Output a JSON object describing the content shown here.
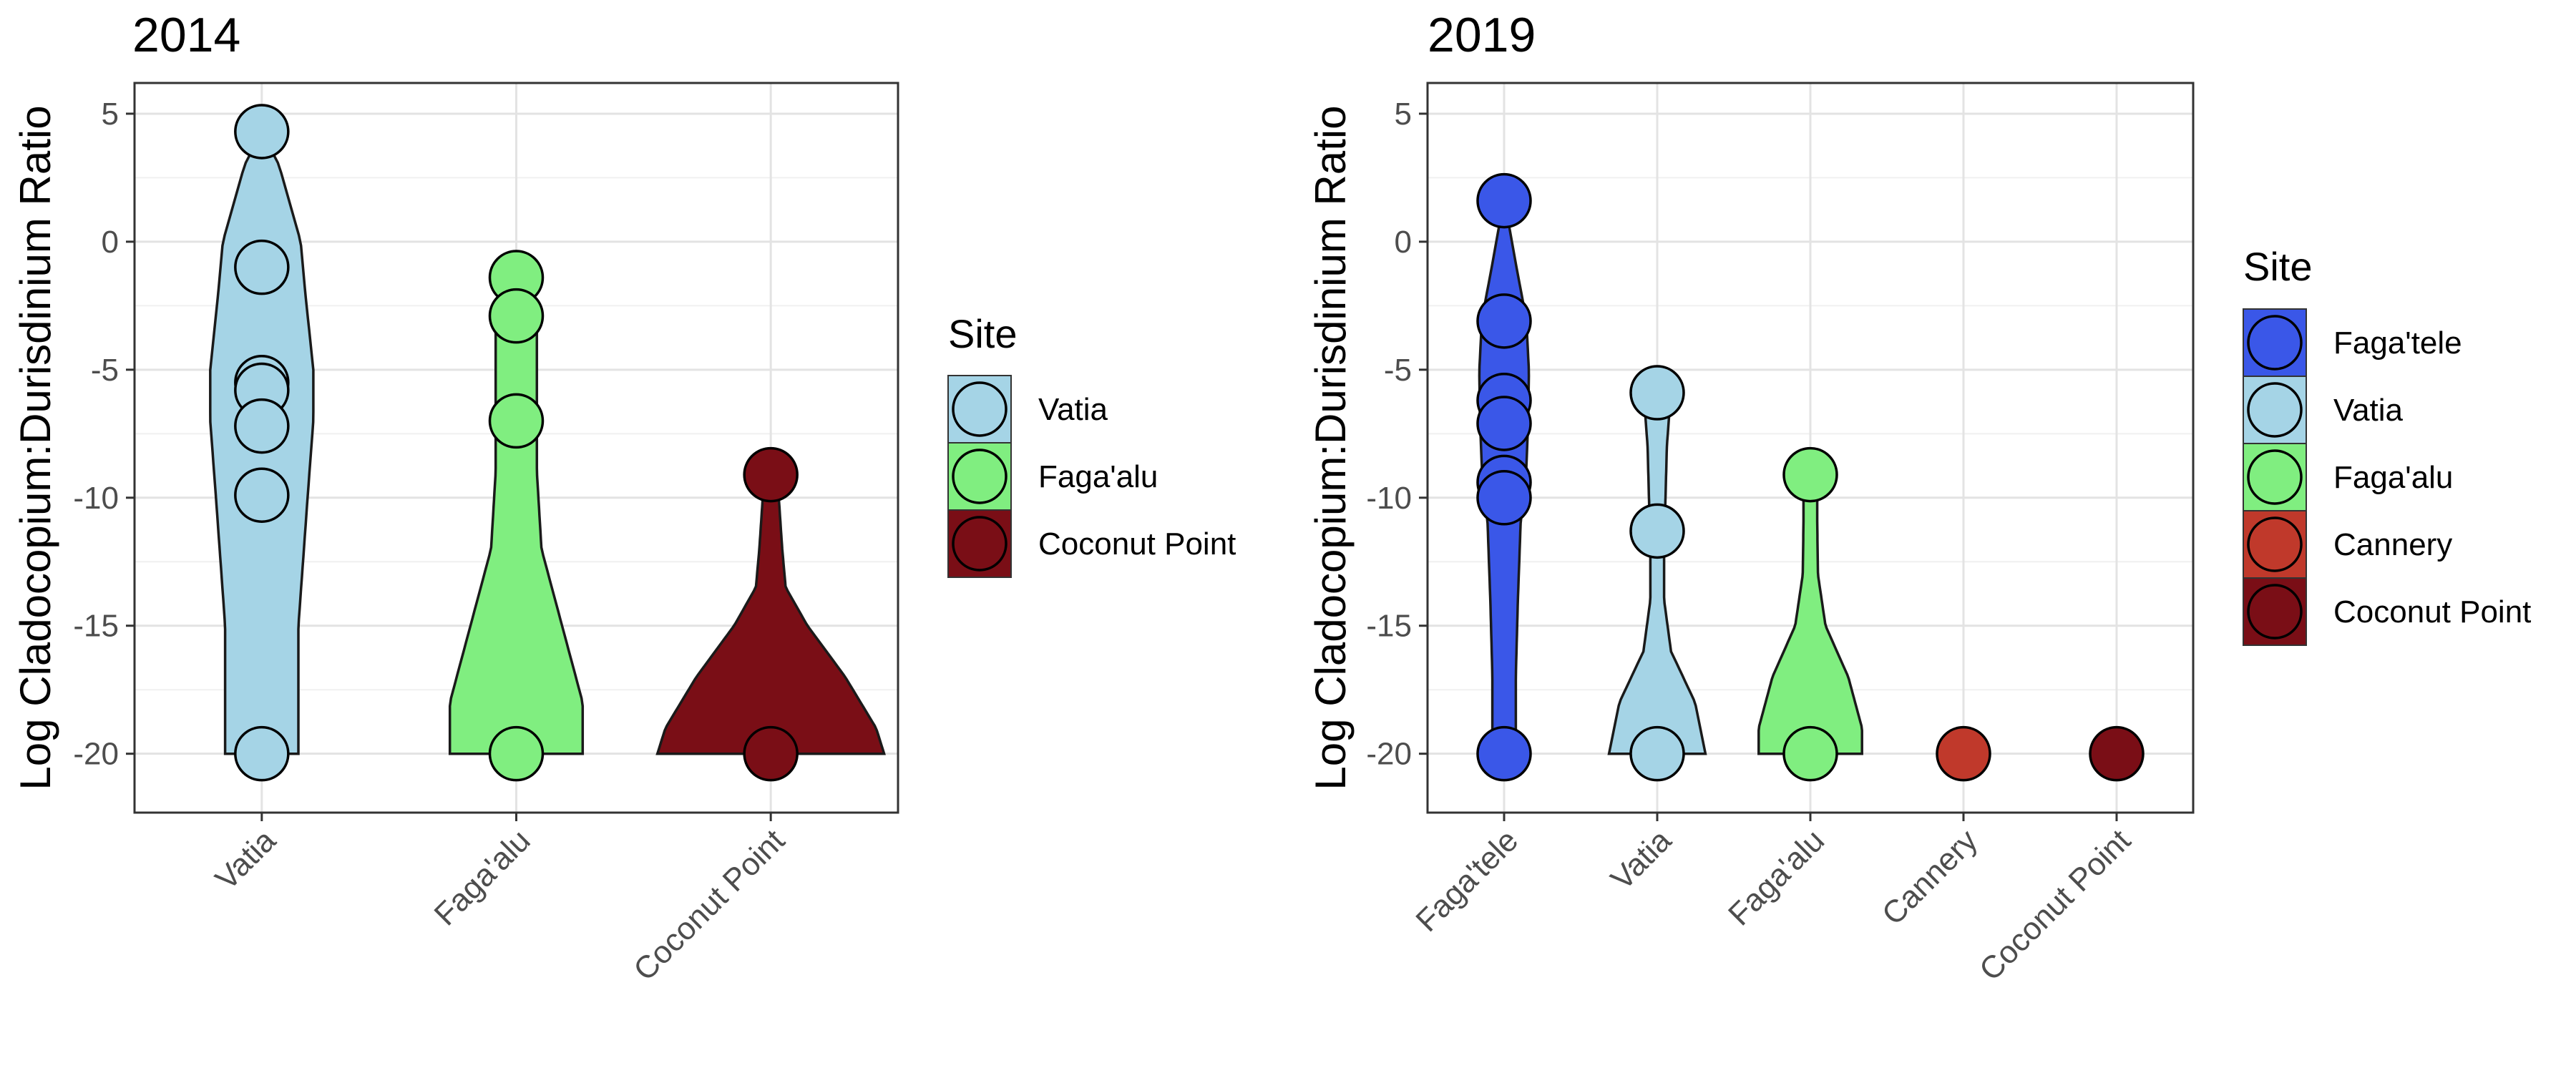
{
  "chart_data": [
    {
      "type": "violin",
      "title": "2014",
      "ylabel": "Log Cladocopium:Durisdinium Ratio",
      "xlabel": "",
      "ylim": [
        -22.3,
        6.2
      ],
      "yticks": [
        5,
        0,
        -5,
        -10,
        -15,
        -20
      ],
      "grid": true,
      "legend": {
        "title": "Site",
        "position": "right"
      },
      "categories": [
        "Vatia",
        "Faga'alu",
        "Coconut Point"
      ],
      "series": [
        {
          "name": "Vatia",
          "color": "#a5d4e6",
          "values": [
            4.3,
            -1.0,
            -5.5,
            -5.8,
            -7.2,
            -9.9,
            -20.0
          ]
        },
        {
          "name": "Faga'alu",
          "color": "#80ee80",
          "values": [
            -1.4,
            -2.9,
            -7.0,
            -20.0
          ]
        },
        {
          "name": "Coconut Point",
          "color": "#7a0e16",
          "values": [
            -9.1,
            -20.0
          ]
        }
      ]
    },
    {
      "type": "violin",
      "title": "2019",
      "ylabel": "Log Cladocopium:Durisdinium Ratio",
      "xlabel": "",
      "ylim": [
        -22.3,
        6.2
      ],
      "yticks": [
        5,
        0,
        -5,
        -10,
        -15,
        -20
      ],
      "grid": true,
      "legend": {
        "title": "Site",
        "position": "right"
      },
      "categories": [
        "Faga'tele",
        "Vatia",
        "Faga'alu",
        "Cannery",
        "Coconut Point"
      ],
      "series": [
        {
          "name": "Faga'tele",
          "color": "#3a57e8",
          "values": [
            1.6,
            -3.1,
            -6.2,
            -7.1,
            -9.4,
            -10.0,
            -20.0
          ]
        },
        {
          "name": "Vatia",
          "color": "#a5d4e6",
          "values": [
            -5.9,
            -11.3,
            -20.0
          ]
        },
        {
          "name": "Faga'alu",
          "color": "#80ee80",
          "values": [
            -9.1,
            -20.0
          ]
        },
        {
          "name": "Cannery",
          "color": "#c0392b",
          "values": [
            -20.0
          ]
        },
        {
          "name": "Coconut Point",
          "color": "#7a0e16",
          "values": [
            -20.0
          ]
        }
      ]
    }
  ]
}
